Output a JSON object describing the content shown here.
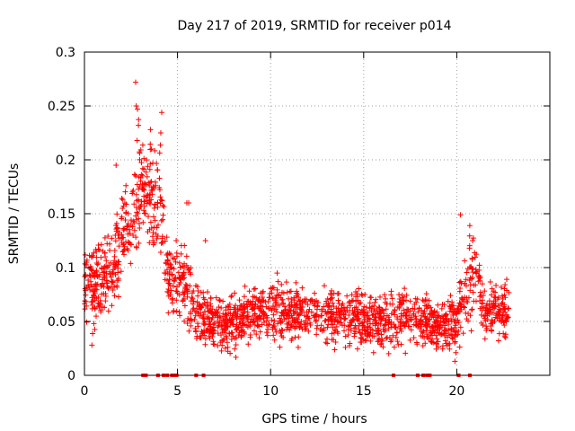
{
  "chart_data": {
    "type": "scatter",
    "title": "Day 217 of 2019, SRMTID for receiver p014",
    "xlabel": "GPS time / hours",
    "ylabel": "SRMTID / TECUs",
    "xlim": [
      0,
      25
    ],
    "ylim": [
      0,
      0.3
    ],
    "x_ticks": [
      0,
      5,
      10,
      15,
      20
    ],
    "x_tick_labels": [
      "0",
      "5",
      "10",
      "15",
      "20"
    ],
    "y_ticks": [
      0,
      0.05,
      0.1,
      0.15,
      0.2,
      0.25,
      0.3
    ],
    "y_tick_labels": [
      "0",
      "0.05",
      "0.1",
      "0.15",
      "0.2",
      "0.25",
      "0.3"
    ],
    "grid": true,
    "marker": "+",
    "color": "#ff0000",
    "envelope": {
      "description": "approximate local mean (y) and spread of the plotted SRMTID points versus GPS time (x); each entry is [x_hour, mean_y, spread_y]",
      "profile": [
        [
          0.0,
          0.085,
          0.025
        ],
        [
          0.5,
          0.08,
          0.03
        ],
        [
          1.0,
          0.085,
          0.03
        ],
        [
          1.5,
          0.1,
          0.03
        ],
        [
          2.0,
          0.13,
          0.035
        ],
        [
          2.5,
          0.14,
          0.035
        ],
        [
          3.0,
          0.175,
          0.045
        ],
        [
          3.5,
          0.165,
          0.04
        ],
        [
          4.0,
          0.17,
          0.045
        ],
        [
          4.5,
          0.09,
          0.025
        ],
        [
          5.0,
          0.09,
          0.03
        ],
        [
          5.5,
          0.085,
          0.03
        ],
        [
          6.0,
          0.055,
          0.02
        ],
        [
          7.0,
          0.05,
          0.02
        ],
        [
          8.0,
          0.05,
          0.02
        ],
        [
          9.0,
          0.06,
          0.02
        ],
        [
          10.0,
          0.06,
          0.022
        ],
        [
          11.0,
          0.06,
          0.02
        ],
        [
          12.0,
          0.055,
          0.02
        ],
        [
          13.0,
          0.055,
          0.02
        ],
        [
          14.0,
          0.055,
          0.02
        ],
        [
          15.0,
          0.05,
          0.02
        ],
        [
          16.0,
          0.05,
          0.02
        ],
        [
          17.0,
          0.055,
          0.02
        ],
        [
          18.0,
          0.05,
          0.02
        ],
        [
          19.0,
          0.045,
          0.018
        ],
        [
          20.0,
          0.05,
          0.02
        ],
        [
          20.5,
          0.08,
          0.035
        ],
        [
          21.0,
          0.095,
          0.035
        ],
        [
          21.5,
          0.06,
          0.02
        ],
        [
          22.0,
          0.06,
          0.02
        ],
        [
          22.8,
          0.06,
          0.02
        ]
      ],
      "x_range": [
        0.0,
        22.8
      ],
      "point_count": 2000
    },
    "peaks": [
      {
        "x": 2.75,
        "y": 0.272
      },
      {
        "x": 2.78,
        "y": 0.25
      },
      {
        "x": 2.85,
        "y": 0.247
      },
      {
        "x": 2.9,
        "y": 0.232
      },
      {
        "x": 4.15,
        "y": 0.244
      },
      {
        "x": 4.1,
        "y": 0.225
      },
      {
        "x": 3.55,
        "y": 0.228
      },
      {
        "x": 3.6,
        "y": 0.21
      },
      {
        "x": 1.7,
        "y": 0.195
      },
      {
        "x": 20.2,
        "y": 0.149
      },
      {
        "x": 20.7,
        "y": 0.139
      },
      {
        "x": 20.85,
        "y": 0.125
      },
      {
        "x": 5.5,
        "y": 0.16
      },
      {
        "x": 5.6,
        "y": 0.16
      },
      {
        "x": 6.5,
        "y": 0.125
      },
      {
        "x": 0.4,
        "y": 0.028
      },
      {
        "x": 19.9,
        "y": 0.013
      },
      {
        "x": 19.95,
        "y": 0.021
      }
    ],
    "zero_marks_x": [
      3.15,
      3.3,
      3.95,
      4.25,
      4.45,
      4.7,
      4.85,
      4.95,
      6.0,
      6.4,
      16.6,
      17.9,
      18.2,
      18.4,
      18.55,
      20.1,
      20.7
    ]
  }
}
